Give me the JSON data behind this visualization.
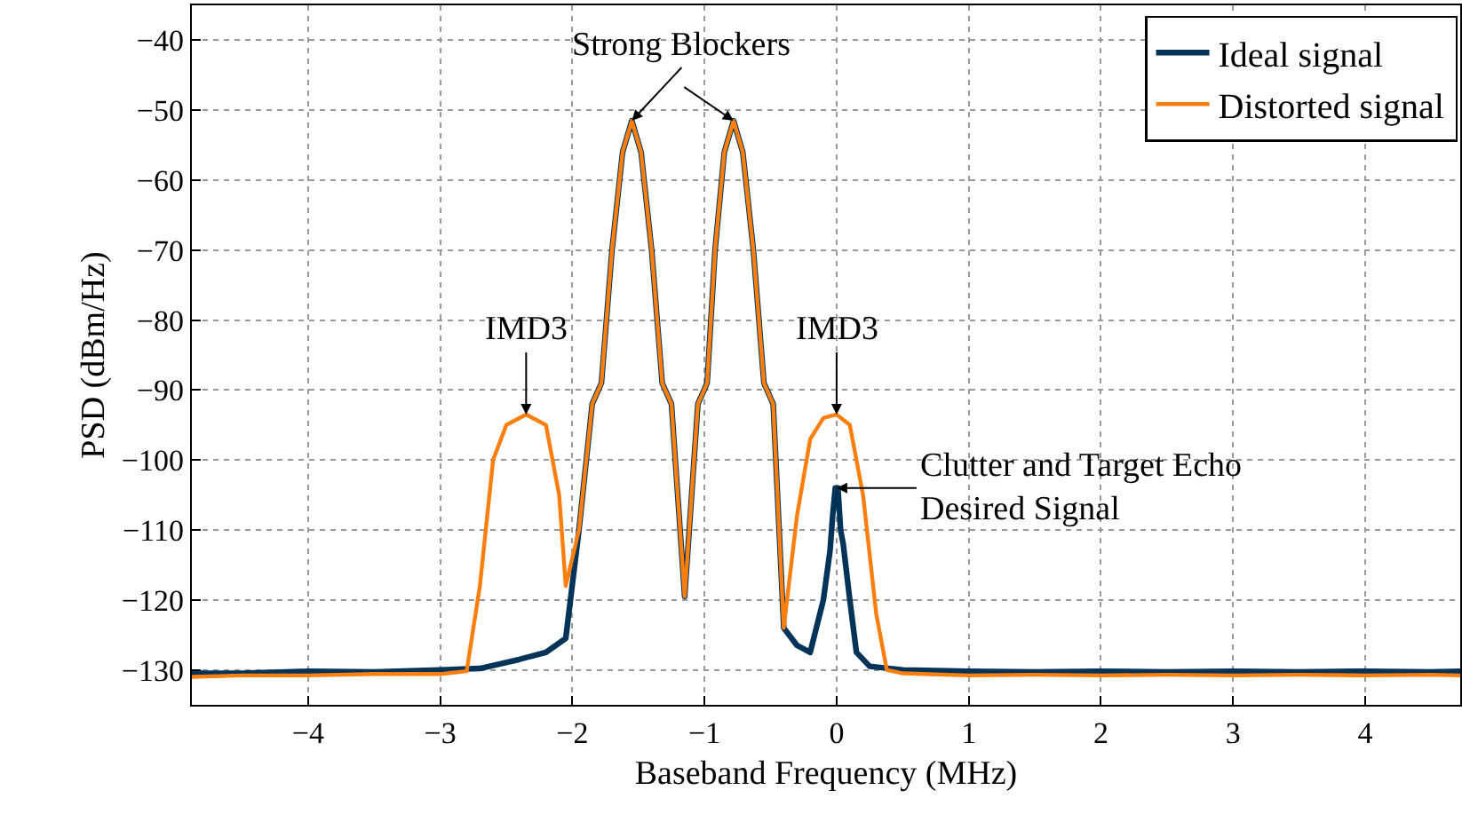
{
  "chart_data": {
    "type": "line",
    "xlabel": "Baseband Frequency (MHz)",
    "ylabel": "PSD (dBm/Hz)",
    "xlim": [
      -4.88,
      4.72
    ],
    "ylim": [
      -135,
      -35
    ],
    "xticks": [
      {
        "value": -4,
        "label": "−4"
      },
      {
        "value": -3,
        "label": "−3"
      },
      {
        "value": -2,
        "label": "−2"
      },
      {
        "value": -1,
        "label": "−1"
      },
      0,
      1,
      2,
      3,
      4
    ],
    "yticks": [
      {
        "value": -130,
        "label": "−130"
      },
      {
        "value": -120,
        "label": "−120"
      },
      {
        "value": -110,
        "label": "−110"
      },
      {
        "value": -100,
        "label": "−100"
      },
      {
        "value": -90,
        "label": "−90"
      },
      {
        "value": -80,
        "label": "−80"
      },
      {
        "value": -70,
        "label": "−70"
      },
      {
        "value": -60,
        "label": "−60"
      },
      {
        "value": -50,
        "label": "−50"
      },
      {
        "value": -40,
        "label": "−40"
      }
    ],
    "grid": true,
    "legend": "top right",
    "marker": "none",
    "line_style": "solid",
    "series": [
      {
        "name": "Ideal signal",
        "color": "#003358",
        "x": [
          -4.88,
          -4.5,
          -4.0,
          -3.5,
          -3.0,
          -2.7,
          -2.4,
          -2.2,
          -2.05,
          -1.95,
          -1.85,
          -1.78,
          -1.7,
          -1.62,
          -1.55,
          -1.48,
          -1.4,
          -1.32,
          -1.25,
          -1.15,
          -1.05,
          -0.98,
          -0.92,
          -0.85,
          -0.78,
          -0.71,
          -0.63,
          -0.55,
          -0.48,
          -0.4,
          -0.3,
          -0.2,
          -0.1,
          -0.05,
          -0.03,
          -0.01,
          0.01,
          0.03,
          0.05,
          0.1,
          0.15,
          0.25,
          0.5,
          1.0,
          1.5,
          2.0,
          2.5,
          3.0,
          3.5,
          4.0,
          4.5,
          4.72
        ],
        "values": [
          -130.5,
          -130.5,
          -130.2,
          -130.3,
          -130,
          -129.8,
          -128.5,
          -127.5,
          -125.5,
          -110,
          -92,
          -89,
          -70,
          -56,
          -51.5,
          -56,
          -70,
          -89,
          -92,
          -119.5,
          -92,
          -89,
          -70,
          -56,
          -51.5,
          -56,
          -70,
          -89,
          -92,
          -124,
          -126.5,
          -127.5,
          -120,
          -113,
          -108,
          -104,
          -104,
          -110,
          -112,
          -120,
          -127.5,
          -129.5,
          -130,
          -130.2,
          -130.3,
          -130.2,
          -130.3,
          -130.2,
          -130.3,
          -130.2,
          -130.3,
          -130.2
        ]
      },
      {
        "name": "Distorted signal",
        "color": "#ff7f0e",
        "x": [
          -4.88,
          -4.5,
          -4.0,
          -3.5,
          -3.0,
          -2.8,
          -2.7,
          -2.6,
          -2.5,
          -2.35,
          -2.2,
          -2.1,
          -2.05,
          -1.95,
          -1.85,
          -1.78,
          -1.7,
          -1.62,
          -1.55,
          -1.48,
          -1.4,
          -1.32,
          -1.25,
          -1.15,
          -1.05,
          -0.98,
          -0.92,
          -0.85,
          -0.78,
          -0.71,
          -0.63,
          -0.55,
          -0.48,
          -0.4,
          -0.3,
          -0.2,
          -0.1,
          0.0,
          0.1,
          0.2,
          0.3,
          0.38,
          0.5,
          1.0,
          1.5,
          2.0,
          2.5,
          3.0,
          3.5,
          4.0,
          4.5,
          4.72
        ],
        "values": [
          -131,
          -130.8,
          -130.8,
          -130.6,
          -130.6,
          -130.2,
          -118,
          -100,
          -95,
          -93.5,
          -95,
          -105,
          -118,
          -110,
          -92,
          -89,
          -70,
          -56,
          -51.5,
          -56,
          -70,
          -89,
          -92,
          -119.5,
          -92,
          -89,
          -70,
          -56,
          -51.5,
          -56,
          -70,
          -89,
          -92,
          -124,
          -108,
          -97,
          -94,
          -93.5,
          -95,
          -105,
          -122,
          -130,
          -130.5,
          -130.8,
          -130.7,
          -130.8,
          -130.7,
          -130.8,
          -130.7,
          -130.8,
          -130.7,
          -130.8
        ]
      }
    ],
    "annotations": [
      {
        "text": "Strong Blockers",
        "x": -1.55,
        "y": -51.5
      },
      {
        "text": "IMD3",
        "x": -2.35,
        "y": -93.5
      },
      {
        "text": "IMD3",
        "x": 0.0,
        "y": -93.5
      },
      {
        "text": "Clutter and Target Echo\nDesired Signal",
        "x": 0.0,
        "y": -104
      }
    ]
  }
}
